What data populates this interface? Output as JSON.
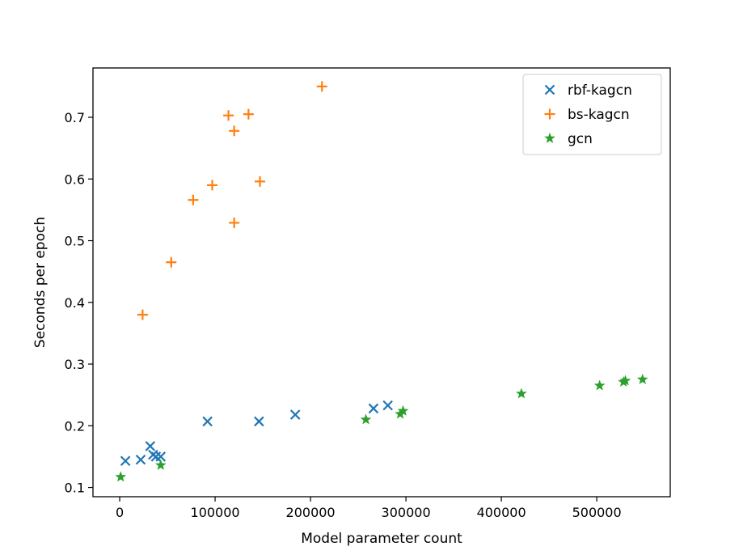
{
  "chart_data": {
    "type": "scatter",
    "title": "",
    "xlabel": "Model parameter count",
    "ylabel": "Seconds per epoch",
    "xlim": [
      -28000,
      577000
    ],
    "ylim": [
      0.085,
      0.78
    ],
    "x_ticks": [
      0,
      100000,
      200000,
      300000,
      400000,
      500000
    ],
    "x_tick_labels": [
      "0",
      "100000",
      "200000",
      "300000",
      "400000",
      "500000"
    ],
    "y_ticks": [
      0.1,
      0.2,
      0.3,
      0.4,
      0.5,
      0.6,
      0.7
    ],
    "y_tick_labels": [
      "0.1",
      "0.2",
      "0.3",
      "0.4",
      "0.5",
      "0.6",
      "0.7"
    ],
    "grid": false,
    "legend_position": "top-right",
    "series": [
      {
        "name": "rbf-kagcn",
        "marker": "x",
        "color": "#1f77b4",
        "points": [
          {
            "x": 6000,
            "y": 0.143
          },
          {
            "x": 22000,
            "y": 0.145
          },
          {
            "x": 32000,
            "y": 0.167
          },
          {
            "x": 35000,
            "y": 0.153
          },
          {
            "x": 38000,
            "y": 0.15
          },
          {
            "x": 43000,
            "y": 0.15
          },
          {
            "x": 92000,
            "y": 0.207
          },
          {
            "x": 146000,
            "y": 0.207
          },
          {
            "x": 184000,
            "y": 0.218
          },
          {
            "x": 266000,
            "y": 0.228
          },
          {
            "x": 281000,
            "y": 0.233
          }
        ]
      },
      {
        "name": "bs-kagcn",
        "marker": "+",
        "color": "#ff7f0e",
        "points": [
          {
            "x": 24000,
            "y": 0.38
          },
          {
            "x": 54000,
            "y": 0.465
          },
          {
            "x": 77000,
            "y": 0.566
          },
          {
            "x": 97000,
            "y": 0.59
          },
          {
            "x": 114000,
            "y": 0.703
          },
          {
            "x": 120000,
            "y": 0.678
          },
          {
            "x": 120000,
            "y": 0.529
          },
          {
            "x": 135000,
            "y": 0.705
          },
          {
            "x": 147000,
            "y": 0.596
          },
          {
            "x": 212000,
            "y": 0.75
          }
        ]
      },
      {
        "name": "gcn",
        "marker": "*",
        "color": "#2ca02c",
        "points": [
          {
            "x": 1000,
            "y": 0.117
          },
          {
            "x": 43000,
            "y": 0.136
          },
          {
            "x": 258000,
            "y": 0.21
          },
          {
            "x": 294000,
            "y": 0.219
          },
          {
            "x": 297000,
            "y": 0.224
          },
          {
            "x": 421000,
            "y": 0.252
          },
          {
            "x": 503000,
            "y": 0.265
          },
          {
            "x": 528000,
            "y": 0.271
          },
          {
            "x": 530000,
            "y": 0.273
          },
          {
            "x": 548000,
            "y": 0.275
          }
        ]
      }
    ]
  }
}
